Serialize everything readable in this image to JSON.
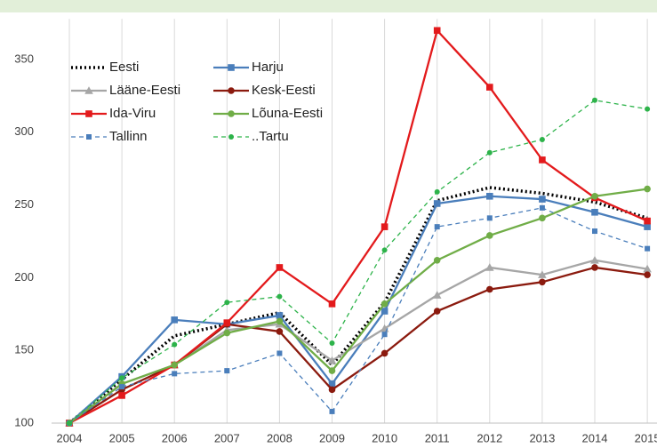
{
  "chart_data": {
    "type": "line",
    "categories": [
      "2004",
      "2005",
      "2006",
      "2007",
      "2008",
      "2009",
      "2010",
      "2011",
      "2012",
      "2013",
      "2014",
      "2015"
    ],
    "ylim": [
      100,
      378
    ],
    "yticks": [
      100,
      150,
      200,
      250,
      300,
      350
    ],
    "grid": "vertical",
    "series": [
      {
        "name": "Eesti",
        "color": "#000000",
        "dash": "dotted",
        "marker": "none",
        "values": [
          100,
          130,
          160,
          168,
          176,
          140,
          183,
          253,
          262,
          258,
          252,
          241
        ]
      },
      {
        "name": "Harju",
        "color": "#4a7ebb",
        "dash": "solid",
        "marker": "square",
        "values": [
          100,
          132,
          171,
          168,
          174,
          127,
          177,
          251,
          256,
          254,
          245,
          235
        ]
      },
      {
        "name": "Lääne-Eesti",
        "color": "#a6a6a6",
        "dash": "solid",
        "marker": "triangle",
        "values": [
          100,
          127,
          140,
          164,
          168,
          143,
          165,
          188,
          207,
          202,
          212,
          206
        ]
      },
      {
        "name": "Kesk-Eesti",
        "color": "#8b1a0e",
        "dash": "solid",
        "marker": "circle",
        "values": [
          100,
          123,
          140,
          168,
          163,
          123,
          148,
          177,
          192,
          197,
          207,
          202
        ]
      },
      {
        "name": "Ida-Viru",
        "color": "#e31a1c",
        "dash": "solid",
        "marker": "square",
        "values": [
          100,
          119,
          140,
          169,
          207,
          182,
          235,
          370,
          331,
          281,
          255,
          239
        ]
      },
      {
        "name": "Lõuna-Eesti",
        "color": "#70ad47",
        "dash": "solid",
        "marker": "circle",
        "values": [
          100,
          127,
          140,
          162,
          170,
          136,
          182,
          212,
          229,
          241,
          256,
          261
        ]
      },
      {
        "name": "Tallinn",
        "color": "#4a7ebb",
        "dash": "dashed",
        "marker": "square",
        "values": [
          100,
          125,
          134,
          136,
          148,
          108,
          161,
          235,
          241,
          248,
          232,
          220
        ]
      },
      {
        "name": "..Tartu",
        "color": "#2db34a",
        "dash": "dashed",
        "marker": "circle",
        "values": [
          100,
          131,
          154,
          183,
          187,
          155,
          219,
          259,
          286,
          295,
          322,
          316
        ]
      }
    ]
  }
}
